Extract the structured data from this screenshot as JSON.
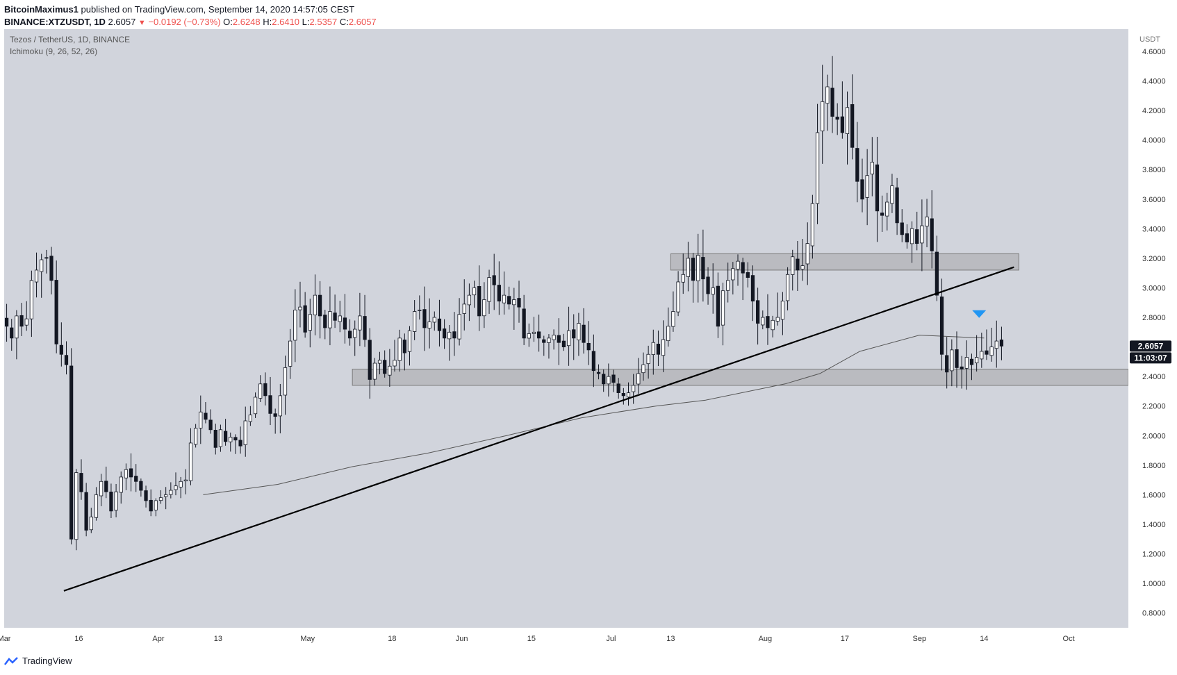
{
  "header": {
    "author": "BitcoinMaximus1",
    "published": "published on TradingView.com, September 14, 2020 14:57:05 CEST",
    "symbol": "BINANCE:XTZUSDT, 1D",
    "last": "2.6057",
    "change": "−0.0192 (−0.73%)",
    "o_label": "O:",
    "o": "2.6248",
    "h_label": "H:",
    "h": "2.6410",
    "l_label": "L:",
    "l": "2.5357",
    "c_label": "C:",
    "c": "2.6057"
  },
  "footer": {
    "brand": "TradingView"
  },
  "colors": {
    "background": "#d1d4dc",
    "axis_bg": "#ffffff",
    "up_body": "#ffffff",
    "down_body": "#131722",
    "wick": "#131722",
    "zone": "#9e9e9e",
    "marker": "#2196f3",
    "ma": "#555555"
  },
  "chart_data": {
    "type": "candlestick",
    "title": "Tezos / TetherUS, 1D, BINANCE",
    "indicator": "Ichimoku (9, 26, 52, 26)",
    "ylabel": "USDT",
    "ylim": [
      0.7,
      4.75
    ],
    "xlim": [
      "2020-03-01",
      "2020-10-13"
    ],
    "yticks": [
      "0.8000",
      "1.0000",
      "1.2000",
      "1.4000",
      "1.6000",
      "1.8000",
      "2.0000",
      "2.2000",
      "2.4000",
      "2.6000",
      "2.8000",
      "3.0000",
      "3.2000",
      "3.4000",
      "3.6000",
      "3.8000",
      "4.0000",
      "4.2000",
      "4.4000",
      "4.6000"
    ],
    "xticks": [
      {
        "date": "2020-03-01",
        "label": "Mar"
      },
      {
        "date": "2020-03-16",
        "label": "16"
      },
      {
        "date": "2020-04-01",
        "label": "Apr"
      },
      {
        "date": "2020-04-13",
        "label": "13"
      },
      {
        "date": "2020-05-01",
        "label": "May"
      },
      {
        "date": "2020-05-18",
        "label": "18"
      },
      {
        "date": "2020-06-01",
        "label": "Jun"
      },
      {
        "date": "2020-06-15",
        "label": "15"
      },
      {
        "date": "2020-07-01",
        "label": "Jul"
      },
      {
        "date": "2020-07-13",
        "label": "13"
      },
      {
        "date": "2020-08-01",
        "label": "Aug"
      },
      {
        "date": "2020-08-17",
        "label": "17"
      },
      {
        "date": "2020-09-01",
        "label": "Sep"
      },
      {
        "date": "2020-09-14",
        "label": "14"
      },
      {
        "date": "2020-10-01",
        "label": "Oct"
      }
    ],
    "start_date": "2020-03-01",
    "price_label": "2.6057",
    "countdown": "11:03:07",
    "closes": [
      2.74,
      2.66,
      2.81,
      2.74,
      2.79,
      3.05,
      3.12,
      3.19,
      3.2,
      3.05,
      2.62,
      2.55,
      2.48,
      1.3,
      1.75,
      1.62,
      1.36,
      1.45,
      1.6,
      1.69,
      1.62,
      1.49,
      1.62,
      1.72,
      1.77,
      1.72,
      1.69,
      1.63,
      1.56,
      1.49,
      1.56,
      1.58,
      1.6,
      1.63,
      1.66,
      1.69,
      1.7,
      1.95,
      2.05,
      2.16,
      2.11,
      2.04,
      1.92,
      2.04,
      1.96,
      1.99,
      1.97,
      1.93,
      2.1,
      2.14,
      2.26,
      2.35,
      2.27,
      2.15,
      2.13,
      2.27,
      2.46,
      2.64,
      2.85,
      2.87,
      2.7,
      2.82,
      2.95,
      2.81,
      2.73,
      2.84,
      2.78,
      2.81,
      2.72,
      2.66,
      2.72,
      2.81,
      2.65,
      2.38,
      2.49,
      2.51,
      2.42,
      2.47,
      2.51,
      2.66,
      2.56,
      2.71,
      2.84,
      2.85,
      2.73,
      2.77,
      2.8,
      2.71,
      2.66,
      2.7,
      2.66,
      2.82,
      2.89,
      2.95,
      3.0,
      2.81,
      2.92,
      3.07,
      3.02,
      2.91,
      2.95,
      2.89,
      2.92,
      2.87,
      2.66,
      2.69,
      2.7,
      2.66,
      2.63,
      2.66,
      2.68,
      2.63,
      2.6,
      2.71,
      2.66,
      2.76,
      2.63,
      2.58,
      2.44,
      2.42,
      2.35,
      2.4,
      2.36,
      2.29,
      2.27,
      2.29,
      2.34,
      2.42,
      2.48,
      2.55,
      2.63,
      2.55,
      2.65,
      2.74,
      2.84,
      3.04,
      3.09,
      3.2,
      3.05,
      3.22,
      3.06,
      2.96,
      3.0,
      2.74,
      2.98,
      3.05,
      3.13,
      3.18,
      3.1,
      3.07,
      2.91,
      2.76,
      2.8,
      2.73,
      2.78,
      2.8,
      2.91,
      3.09,
      3.21,
      3.12,
      3.15,
      3.3,
      3.57,
      4.05,
      4.26,
      4.36,
      4.16,
      4.14,
      4.05,
      4.22,
      3.95,
      3.72,
      3.6,
      3.76,
      3.85,
      3.52,
      3.49,
      3.58,
      3.69,
      3.44,
      3.36,
      3.31,
      3.4,
      3.3,
      3.42,
      3.48,
      3.25,
      2.95,
      2.55,
      2.43,
      2.58,
      2.46,
      2.45,
      2.53,
      2.48,
      2.53,
      2.57,
      2.55,
      2.6,
      2.64,
      2.6057
    ],
    "trendline": {
      "from": {
        "date": "2020-03-13",
        "price": 0.95
      },
      "to": {
        "date": "2020-09-20",
        "price": 3.14
      }
    },
    "resistance_zone": {
      "from": "2020-07-13",
      "to": "2020-09-21",
      "low": 3.12,
      "high": 3.23
    },
    "support_zone": {
      "from": "2020-05-10",
      "to": "2020-10-13",
      "low": 2.34,
      "high": 2.45
    },
    "moving_average": [
      {
        "date": "2020-04-10",
        "price": 1.6
      },
      {
        "date": "2020-04-25",
        "price": 1.67
      },
      {
        "date": "2020-05-10",
        "price": 1.79
      },
      {
        "date": "2020-05-25",
        "price": 1.88
      },
      {
        "date": "2020-06-10",
        "price": 2.0
      },
      {
        "date": "2020-06-25",
        "price": 2.12
      },
      {
        "date": "2020-07-10",
        "price": 2.2
      },
      {
        "date": "2020-07-20",
        "price": 2.24
      },
      {
        "date": "2020-08-05",
        "price": 2.35
      },
      {
        "date": "2020-08-12",
        "price": 2.42
      },
      {
        "date": "2020-08-20",
        "price": 2.57
      },
      {
        "date": "2020-09-01",
        "price": 2.68
      },
      {
        "date": "2020-09-14",
        "price": 2.66
      }
    ],
    "marker": {
      "date": "2020-09-13",
      "price": 2.82
    }
  }
}
